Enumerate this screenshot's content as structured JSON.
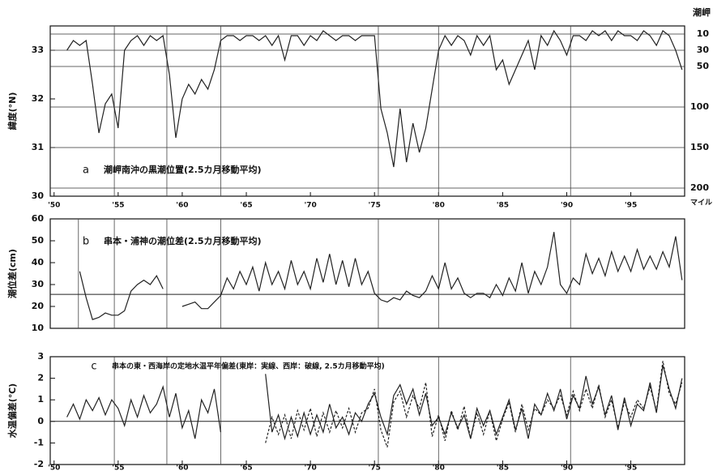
{
  "chart_data": [
    {
      "type": "line",
      "label": "a",
      "annotation": "潮岬南沖の黒潮位置(2.5カ月移動平均)",
      "ylabel": "緯度(°N)",
      "y2label": "潮岬",
      "y2unit": "マイル",
      "xlim": [
        1949.7,
        1999.2
      ],
      "xticks": [
        {
          "value": 1950,
          "label": "'50"
        },
        {
          "value": 1955,
          "label": "'55"
        },
        {
          "value": 1960,
          "label": "'60"
        },
        {
          "value": 1965,
          "label": "'65"
        },
        {
          "value": 1970,
          "label": "'70"
        },
        {
          "value": 1975,
          "label": "'75"
        },
        {
          "value": 1980,
          "label": "'80"
        },
        {
          "value": 1985,
          "label": "'85"
        },
        {
          "value": 1990,
          "label": "'90"
        },
        {
          "value": 1995,
          "label": "'95"
        }
      ],
      "ylim": [
        30,
        33.5
      ],
      "yticks": [
        30,
        31,
        32,
        33
      ],
      "y2lim": [
        210,
        0
      ],
      "y2ticks": [
        10,
        30,
        50,
        100,
        150,
        200
      ],
      "grid": true,
      "vlines": [
        1954.7,
        1958.8,
        1963,
        1975.3,
        1980,
        1990.3
      ],
      "x": [
        1951,
        1951.5,
        1952,
        1952.5,
        1953,
        1953.5,
        1954,
        1954.5,
        1955,
        1955.5,
        1956,
        1956.5,
        1957,
        1957.5,
        1958,
        1958.5,
        1959,
        1959.5,
        1960,
        1960.5,
        1961,
        1961.5,
        1962,
        1962.5,
        1963,
        1963.5,
        1964,
        1964.5,
        1965,
        1965.5,
        1966,
        1966.5,
        1967,
        1967.5,
        1968,
        1968.5,
        1969,
        1969.5,
        1970,
        1970.5,
        1971,
        1971.5,
        1972,
        1972.5,
        1973,
        1973.5,
        1974,
        1974.5,
        1975,
        1975.5,
        1976,
        1976.5,
        1977,
        1977.5,
        1978,
        1978.5,
        1979,
        1979.5,
        1980,
        1980.5,
        1981,
        1981.5,
        1982,
        1982.5,
        1983,
        1983.5,
        1984,
        1984.5,
        1985,
        1985.5,
        1986,
        1986.5,
        1987,
        1987.5,
        1988,
        1988.5,
        1989,
        1989.5,
        1990,
        1990.5,
        1991,
        1991.5,
        1992,
        1992.5,
        1993,
        1993.5,
        1994,
        1994.5,
        1995,
        1995.5,
        1996,
        1996.5,
        1997,
        1997.5,
        1998,
        1998.5,
        1999
      ],
      "series": [
        {
          "color": "#222",
          "values": [
            33.0,
            33.2,
            33.1,
            33.2,
            32.3,
            31.3,
            31.9,
            32.1,
            31.4,
            33.0,
            33.2,
            33.3,
            33.1,
            33.3,
            33.2,
            33.3,
            32.5,
            31.2,
            32.0,
            32.3,
            32.1,
            32.4,
            32.2,
            32.6,
            33.2,
            33.3,
            33.3,
            33.2,
            33.3,
            33.3,
            33.2,
            33.3,
            33.1,
            33.3,
            32.8,
            33.3,
            33.3,
            33.1,
            33.3,
            33.2,
            33.4,
            33.3,
            33.2,
            33.3,
            33.3,
            33.2,
            33.3,
            33.3,
            33.3,
            31.8,
            31.3,
            30.6,
            31.8,
            30.7,
            31.5,
            30.9,
            31.4,
            32.2,
            33.0,
            33.3,
            33.1,
            33.3,
            33.2,
            32.9,
            33.3,
            33.1,
            33.3,
            32.6,
            32.8,
            32.3,
            32.6,
            32.9,
            33.2,
            32.6,
            33.3,
            33.1,
            33.4,
            33.2,
            32.9,
            33.3,
            33.3,
            33.2,
            33.4,
            33.3,
            33.4,
            33.2,
            33.4,
            33.3,
            33.3,
            33.2,
            33.4,
            33.3,
            33.1,
            33.4,
            33.3,
            33.0,
            32.6
          ]
        }
      ]
    },
    {
      "type": "line",
      "label": "b",
      "annotation": "串本・浦神の潮位差(2.5カ月移動平均)",
      "ylabel": "潮位差(cm)",
      "xlim": [
        1949.7,
        1999.2
      ],
      "ylim": [
        10,
        60
      ],
      "yticks": [
        10,
        20,
        30,
        40,
        50,
        60
      ],
      "reference": 25.5,
      "vlines": [
        1951.9,
        1954.7,
        1958.8,
        1963,
        1975.3,
        1980,
        1990.3
      ],
      "x": [
        1951,
        1951.5,
        1952,
        1952.5,
        1953,
        1953.5,
        1954,
        1954.5,
        1955,
        1955.5,
        1956,
        1956.5,
        1957,
        1957.5,
        1958,
        1958.5,
        1959,
        1959.5,
        1960,
        1960.5,
        1961,
        1961.5,
        1962,
        1962.5,
        1963,
        1963.5,
        1964,
        1964.5,
        1965,
        1965.5,
        1966,
        1966.5,
        1967,
        1967.5,
        1968,
        1968.5,
        1969,
        1969.5,
        1970,
        1970.5,
        1971,
        1971.5,
        1972,
        1972.5,
        1973,
        1973.5,
        1974,
        1974.5,
        1975,
        1975.5,
        1976,
        1976.5,
        1977,
        1977.5,
        1978,
        1978.5,
        1979,
        1979.5,
        1980,
        1980.5,
        1981,
        1981.5,
        1982,
        1982.5,
        1983,
        1983.5,
        1984,
        1984.5,
        1985,
        1985.5,
        1986,
        1986.5,
        1987,
        1987.5,
        1988,
        1988.5,
        1989,
        1989.5,
        1990,
        1990.5,
        1991,
        1991.5,
        1992,
        1992.5,
        1993,
        1993.5,
        1994,
        1994.5,
        1995,
        1995.5,
        1996,
        1996.5,
        1997,
        1997.5,
        1998,
        1998.5,
        1999
      ],
      "series": [
        {
          "color": "#222",
          "values": [
            null,
            null,
            36,
            24,
            14,
            15,
            17,
            16,
            16,
            18,
            27,
            30,
            32,
            30,
            34,
            28,
            null,
            null,
            20,
            21,
            22,
            19,
            19,
            22,
            25,
            33,
            28,
            36,
            30,
            38,
            27,
            40,
            30,
            36,
            28,
            41,
            30,
            36,
            28,
            42,
            31,
            44,
            30,
            41,
            29,
            42,
            30,
            36,
            26,
            23,
            22,
            24,
            23,
            27,
            25,
            24,
            27,
            34,
            28,
            40,
            28,
            33,
            26,
            24,
            26,
            26,
            24,
            30,
            25,
            33,
            27,
            40,
            26,
            36,
            30,
            38,
            54,
            30,
            26,
            33,
            30,
            44,
            35,
            42,
            34,
            45,
            36,
            43,
            36,
            46,
            37,
            43,
            37,
            45,
            38,
            52,
            32
          ]
        }
      ]
    },
    {
      "type": "line",
      "label": "c",
      "annotation": "串本の東・西海岸の定地水温平年偏差(東岸：実線、西岸：破線, 2.5カ月移動平均)",
      "ylabel": "水温偏差(℃)",
      "xlim": [
        1949.7,
        1999.2
      ],
      "xticks": [
        {
          "value": 1950,
          "label": "'50"
        },
        {
          "value": 1955,
          "label": "'55"
        },
        {
          "value": 1960,
          "label": "'60"
        },
        {
          "value": 1965,
          "label": "'65"
        },
        {
          "value": 1970,
          "label": "'70"
        },
        {
          "value": 1975,
          "label": "'75"
        },
        {
          "value": 1980,
          "label": "'80"
        },
        {
          "value": 1985,
          "label": "'85"
        },
        {
          "value": 1990,
          "label": "'90"
        },
        {
          "value": 1995,
          "label": "'95"
        }
      ],
      "ylim": [
        -2,
        3
      ],
      "yticks": [
        -2,
        -1,
        0,
        1,
        2,
        3
      ],
      "reference": 0,
      "vlines": [
        1954.7,
        1958.8,
        1963,
        1975.3,
        1980,
        1990.3
      ],
      "x": [
        1951,
        1951.5,
        1952,
        1952.5,
        1953,
        1953.5,
        1954,
        1954.5,
        1955,
        1955.5,
        1956,
        1956.5,
        1957,
        1957.5,
        1958,
        1958.5,
        1959,
        1959.5,
        1960,
        1960.5,
        1961,
        1961.5,
        1962,
        1962.5,
        1963,
        1963.5,
        1964,
        1964.5,
        1965,
        1965.5,
        1966,
        1966.5,
        1967,
        1967.5,
        1968,
        1968.5,
        1969,
        1969.5,
        1970,
        1970.5,
        1971,
        1971.5,
        1972,
        1972.5,
        1973,
        1973.5,
        1974,
        1974.5,
        1975,
        1975.5,
        1976,
        1976.5,
        1977,
        1977.5,
        1978,
        1978.5,
        1979,
        1979.5,
        1980,
        1980.5,
        1981,
        1981.5,
        1982,
        1982.5,
        1983,
        1983.5,
        1984,
        1984.5,
        1985,
        1985.5,
        1986,
        1986.5,
        1987,
        1987.5,
        1988,
        1988.5,
        1989,
        1989.5,
        1990,
        1990.5,
        1991,
        1991.5,
        1992,
        1992.5,
        1993,
        1993.5,
        1994,
        1994.5,
        1995,
        1995.5,
        1996,
        1996.5,
        1997,
        1997.5,
        1998,
        1998.5,
        1999
      ],
      "series": [
        {
          "color": "#222",
          "values": [
            0.2,
            0.8,
            0.1,
            1.0,
            0.5,
            1.1,
            0.3,
            1.0,
            0.6,
            -0.2,
            1.0,
            0.2,
            1.2,
            0.4,
            0.8,
            1.6,
            0.2,
            1.3,
            -0.3,
            0.5,
            -0.8,
            1.0,
            0.4,
            1.5,
            -0.5,
            null,
            null,
            null,
            null,
            null,
            null,
            2.2,
            -0.5,
            0.3,
            -0.8,
            0.2,
            -0.7,
            0.4,
            -0.6,
            0.3,
            -0.5,
            0.8,
            -0.3,
            0.2,
            -0.6,
            0.4,
            0.0,
            0.8,
            1.3,
            0.2,
            -0.6,
            1.2,
            1.7,
            0.8,
            1.5,
            0.3,
            1.3,
            -0.2,
            0.2,
            -0.6,
            0.4,
            -0.3,
            0.3,
            -0.8,
            0.6,
            -0.2,
            0.5,
            -0.6,
            0.2,
            1.0,
            -0.4,
            0.6,
            -0.8,
            0.8,
            0.3,
            1.3,
            0.5,
            1.5,
            0.1,
            1.2,
            0.6,
            2.1,
            0.8,
            1.6,
            0.3,
            1.2,
            -0.4,
            1.1,
            -0.2,
            0.8,
            0.5,
            1.8,
            0.4,
            2.6,
            1.5,
            0.6,
            2.0
          ]
        },
        {
          "color": "#222",
          "dash": true,
          "values": [
            null,
            null,
            null,
            null,
            null,
            null,
            null,
            null,
            null,
            null,
            null,
            null,
            null,
            null,
            null,
            null,
            null,
            null,
            null,
            null,
            null,
            null,
            null,
            null,
            null,
            null,
            null,
            null,
            null,
            null,
            null,
            -1.0,
            0.2,
            -0.6,
            0.3,
            -0.8,
            0.5,
            -0.4,
            0.6,
            -0.7,
            0.4,
            -0.5,
            0.5,
            -0.3,
            0.6,
            -0.5,
            0.4,
            0.6,
            1.5,
            -0.4,
            -1.2,
            0.9,
            1.4,
            0.2,
            1.2,
            0.6,
            1.8,
            -0.7,
            0.3,
            -0.9,
            0.5,
            -0.4,
            0.7,
            -0.8,
            0.4,
            -0.6,
            0.5,
            -0.9,
            0.1,
            0.9,
            -0.5,
            0.8,
            -0.4,
            0.6,
            0.3,
            1.0,
            0.6,
            1.2,
            0.3,
            1.4,
            0.5,
            1.5,
            0.6,
            1.7,
            0.2,
            1.0,
            -0.3,
            0.9,
            0.2,
            1.0,
            0.6,
            1.6,
            0.5,
            2.8,
            1.3,
            0.8,
            1.8
          ]
        }
      ]
    }
  ]
}
